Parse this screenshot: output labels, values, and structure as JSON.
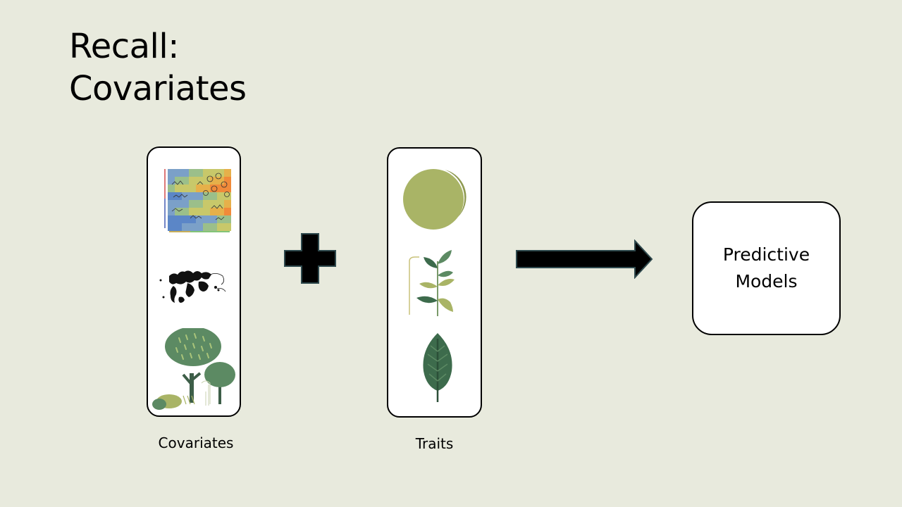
{
  "slide": {
    "title": "Recall:\nCovariates"
  },
  "covariates_panel": {
    "caption": "Covariates",
    "icons": [
      "heatmap-icon",
      "map-icon",
      "trees-icon"
    ]
  },
  "operator": {
    "icon": "plus-icon"
  },
  "traits_panel": {
    "caption": "Traits",
    "icons": [
      "seed-icon",
      "plant-stem-icon",
      "leaf-icon"
    ]
  },
  "connector": {
    "icon": "arrow-right-icon"
  },
  "output_box": {
    "label": "Predictive\nModels"
  },
  "colors": {
    "background": "#e8eadd",
    "panel": "#ffffff",
    "olive": "#a9b466",
    "forest_green": "#5c8a63",
    "dark_green": "#3d6b4c",
    "black": "#000000"
  }
}
